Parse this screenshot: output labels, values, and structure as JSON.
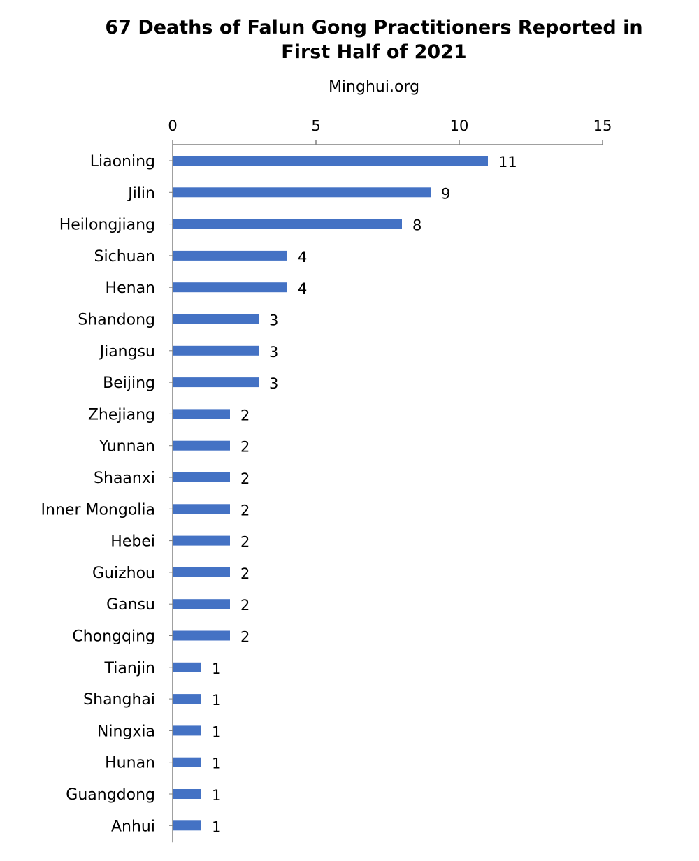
{
  "header": {
    "title_line1": "67 Deaths of Falun Gong Practitioners Reported in",
    "title_line2": "First Half of 2021",
    "subtitle": "Minghui.org"
  },
  "chart_data": {
    "type": "bar",
    "orientation": "horizontal",
    "title": "67 Deaths of Falun Gong Practitioners Reported in First Half of 2021",
    "subtitle": "Minghui.org",
    "xlabel": "",
    "ylabel": "",
    "xlim": [
      0,
      15
    ],
    "xticks": [
      0,
      5,
      10,
      15
    ],
    "axis_position": "top",
    "grid": false,
    "bar_color": "#4472C4",
    "categories": [
      "Liaoning",
      "Jilin",
      "Heilongjiang",
      "Sichuan",
      "Henan",
      "Shandong",
      "Jiangsu",
      "Beijing",
      "Zhejiang",
      "Yunnan",
      "Shaanxi",
      "Inner Mongolia",
      "Hebei",
      "Guizhou",
      "Gansu",
      "Chongqing",
      "Tianjin",
      "Shanghai",
      "Ningxia",
      "Hunan",
      "Guangdong",
      "Anhui"
    ],
    "values": [
      11,
      9,
      8,
      4,
      4,
      3,
      3,
      3,
      2,
      2,
      2,
      2,
      2,
      2,
      2,
      2,
      1,
      1,
      1,
      1,
      1,
      1
    ]
  }
}
